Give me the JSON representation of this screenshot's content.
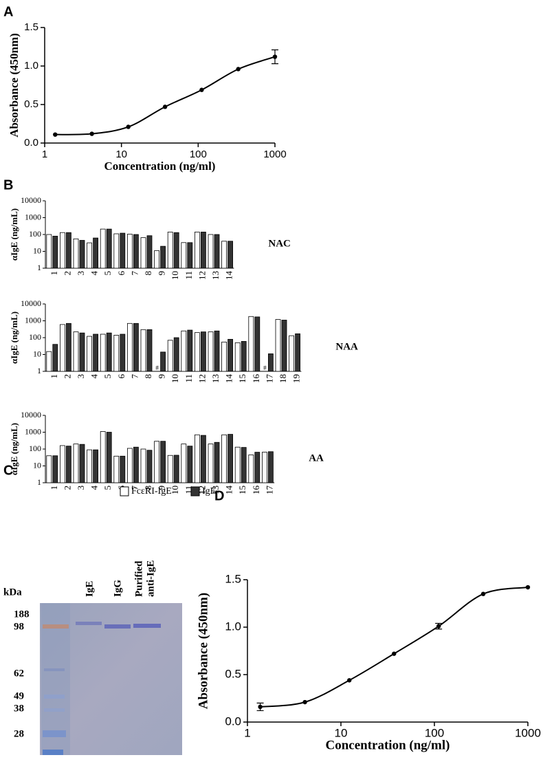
{
  "chart_data": [
    {
      "type": "line",
      "panel": "A",
      "x": [
        1.37,
        4.12,
        12.3,
        37,
        111,
        333,
        1000
      ],
      "values": [
        0.11,
        0.12,
        0.21,
        0.47,
        0.69,
        0.96,
        1.12
      ],
      "errors": [
        null,
        null,
        null,
        null,
        null,
        null,
        0.09
      ],
      "xscale": "log",
      "xlim": [
        1,
        1000
      ],
      "xticks": [
        1,
        10,
        100,
        1000
      ],
      "ylim": [
        0,
        1.5
      ],
      "yticks": [
        {
          "value": 0,
          "label": "0.0"
        },
        0.5,
        {
          "value": 1,
          "label": "1.0"
        },
        1.5
      ],
      "xlabel": "Concentration (ng/ml)",
      "ylabel": "Absorbance (450nm)",
      "color": "#000000"
    },
    {
      "type": "bar",
      "panel": "B",
      "ylabel": "αIgE (ng/mL)",
      "yscale": "log",
      "ylim": [
        1,
        10000
      ],
      "yticks": [
        1,
        10,
        100,
        1000,
        10000
      ],
      "series": [
        {
          "name": "FcεRI-IgE",
          "color": "#ffffff"
        },
        {
          "name": "IgE",
          "color": "#333333"
        }
      ],
      "groups": [
        {
          "label": "NAC",
          "categories": [
            "1",
            "2",
            "3",
            "4",
            "5",
            "6",
            "7",
            "8",
            "9",
            "10",
            "11",
            "12",
            "13",
            "14"
          ],
          "values": [
            [
              100,
              130,
              55,
              32,
              210,
              110,
              105,
              65,
              11,
              140,
              33,
              140,
              100,
              40
            ],
            [
              80,
              130,
              45,
              62,
              210,
              120,
              100,
              85,
              20,
              130,
              33,
              140,
              100,
              40
            ]
          ]
        },
        {
          "label": "NAA",
          "categories": [
            "1",
            "2",
            "3",
            "4",
            "5",
            "6",
            "7",
            "8",
            "9",
            "10",
            "11",
            "12",
            "13",
            "14",
            "15",
            "16",
            "17",
            "18",
            "19"
          ],
          "values": [
            [
              15,
              600,
              220,
              120,
              160,
              140,
              700,
              300,
              null,
              70,
              250,
              200,
              220,
              55,
              50,
              1800,
              null,
              1200,
              130
            ],
            [
              40,
              700,
              190,
              160,
              190,
              160,
              700,
              300,
              14,
              100,
              280,
              220,
              250,
              80,
              60,
              1700,
              11,
              1100,
              170
            ]
          ],
          "annotations": [
            {
              "text": "#",
              "category": "9"
            },
            {
              "text": "#",
              "category": "17"
            }
          ]
        },
        {
          "label": "AA",
          "categories": [
            "1",
            "2",
            "3",
            "4",
            "5",
            "6",
            "7",
            "8",
            "9",
            "10",
            "11",
            "12",
            "13",
            "14",
            "15",
            "16",
            "17"
          ],
          "values": [
            [
              40,
              160,
              200,
              90,
              1100,
              38,
              110,
              100,
              290,
              42,
              200,
              700,
              200,
              700,
              130,
              45,
              65
            ],
            [
              40,
              150,
              190,
              90,
              1000,
              38,
              130,
              85,
              290,
              43,
              150,
              650,
              250,
              750,
              125,
              65,
              70
            ]
          ]
        }
      ]
    },
    {
      "type": "line",
      "panel": "D",
      "x": [
        1.37,
        4.12,
        12.3,
        37,
        111,
        333,
        1000
      ],
      "values": [
        0.16,
        0.21,
        0.44,
        0.72,
        1.01,
        1.35,
        1.42
      ],
      "errors": [
        0.04,
        null,
        null,
        null,
        0.03,
        null,
        null
      ],
      "xscale": "log",
      "xlim": [
        1,
        1000
      ],
      "xticks": [
        1,
        10,
        100,
        1000
      ],
      "ylim": [
        0,
        1.5
      ],
      "yticks": [
        {
          "value": 0,
          "label": "0.0"
        },
        0.5,
        {
          "value": 1,
          "label": "1.0"
        },
        1.5
      ],
      "xlabel": "Concentration (ng/ml)",
      "ylabel": "Absorbance (450nm)",
      "color": "#000000"
    }
  ],
  "gel": {
    "panel": "C",
    "unit": "kDa",
    "markers": [
      "188",
      "98",
      "62",
      "49",
      "38",
      "28"
    ],
    "lanes": [
      [
        "IgE"
      ],
      [
        "IgG"
      ],
      [
        "Purified",
        "anti-IgE"
      ]
    ]
  }
}
